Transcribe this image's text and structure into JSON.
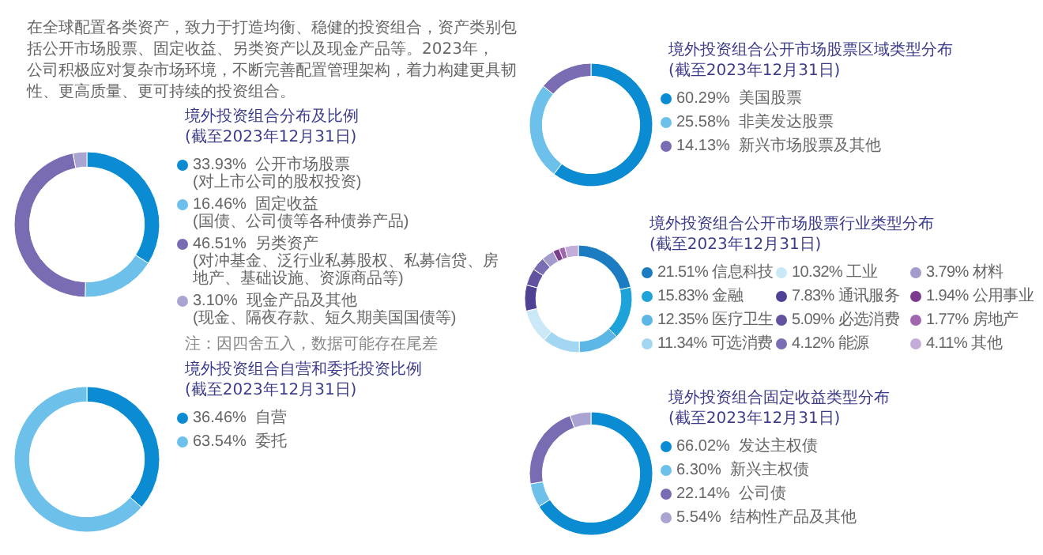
{
  "chart_data": [
    {
      "type": "other",
      "annotations": [
        "在全球配置各类资产，致力于打造均衡、稳健的投资组合，资产类别包括公开市场股票、固定收益、另类资产以及现金产品等。2023年，公司积极应对复杂市场环境，不断完善配置管理架构，着力构建更具韧性、更高质量、更可持续的投资组合。"
      ]
    },
    {
      "type": "donut",
      "title": "境外投资组合分布及比例",
      "subtitle": "(截至2023年12月31日)",
      "legend": "right",
      "annotations": [
        "注：因四舍五入，数据可能存在尾差"
      ],
      "categories": [
        "公开市场股票\n(对上市公司的股权投资)",
        "固定收益\n(国债、公司债等各种债券产品)",
        "另类资产\n(对冲基金、泛行业私募股权、私募信贷、房地产、基础设施、资源商品等)",
        "现金产品及其他\n(现金、隔夜存款、短久期美国国债等)"
      ],
      "values": [
        33.93,
        16.46,
        46.51,
        3.1
      ],
      "value_labels": [
        "33.93%",
        "16.46%",
        "46.51%",
        "3.10%"
      ],
      "colors": [
        "#0a8bd2",
        "#6cc0ea",
        "#7a6cb2",
        "#aaa4d2"
      ]
    },
    {
      "type": "donut",
      "title": "境外投资组合自营和委托投资比例",
      "subtitle": "(截至2023年12月31日)",
      "legend": "right",
      "categories": [
        "自营",
        "委托"
      ],
      "values": [
        36.46,
        63.54
      ],
      "value_labels": [
        "36.46%",
        "63.54%"
      ],
      "colors": [
        "#0a8bd2",
        "#6cc0ea"
      ]
    },
    {
      "type": "donut",
      "title": "境外投资组合公开市场股票区域类型分布",
      "subtitle": "(截至2023年12月31日)",
      "legend": "right",
      "categories": [
        "美国股票",
        "非美发达股票",
        "新兴市场股票及其他"
      ],
      "values": [
        60.29,
        25.58,
        14.13
      ],
      "value_labels": [
        "60.29%",
        "25.58%",
        "14.13%"
      ],
      "colors": [
        "#0a8bd2",
        "#6cc0ea",
        "#7a6cb2"
      ]
    },
    {
      "type": "donut",
      "title": "境外投资组合公开市场股票行业类型分布",
      "subtitle": "(截至2023年12月31日)",
      "legend": "right",
      "categories": [
        "信息科技",
        "金融",
        "医疗卫生",
        "可选消费",
        "工业",
        "通讯服务",
        "必选消费",
        "能源",
        "材料",
        "公用事业",
        "房地产",
        "其他"
      ],
      "values": [
        21.51,
        15.83,
        12.35,
        11.34,
        10.32,
        7.83,
        5.09,
        4.12,
        3.79,
        1.94,
        1.77,
        4.11
      ],
      "value_labels": [
        "21.51%",
        "15.83%",
        "12.35%",
        "11.34%",
        "10.32%",
        "7.83%",
        "5.09%",
        "4.12%",
        "3.79%",
        "1.94%",
        "1.77%",
        "4.11%"
      ],
      "colors": [
        "#1b7cc2",
        "#1ea2da",
        "#5cb6e6",
        "#a3d6f1",
        "#cbe8f6",
        "#4f4294",
        "#62529f",
        "#7a6db3",
        "#a29bcb",
        "#7b3c8e",
        "#a066ae",
        "#c3acd8"
      ]
    },
    {
      "type": "donut",
      "title": "境外投资组合固定收益类型分布",
      "subtitle": "(截至2023年12月31日)",
      "legend": "right",
      "categories": [
        "发达主权债",
        "新兴主权债",
        "公司债",
        "结构性产品及其他"
      ],
      "values": [
        66.02,
        6.3,
        22.14,
        5.54
      ],
      "value_labels": [
        "66.02%",
        "6.30%",
        "22.14%",
        "5.54%"
      ],
      "colors": [
        "#0a8bd2",
        "#6cc0ea",
        "#7a6cb2",
        "#aaa4d2"
      ]
    }
  ]
}
